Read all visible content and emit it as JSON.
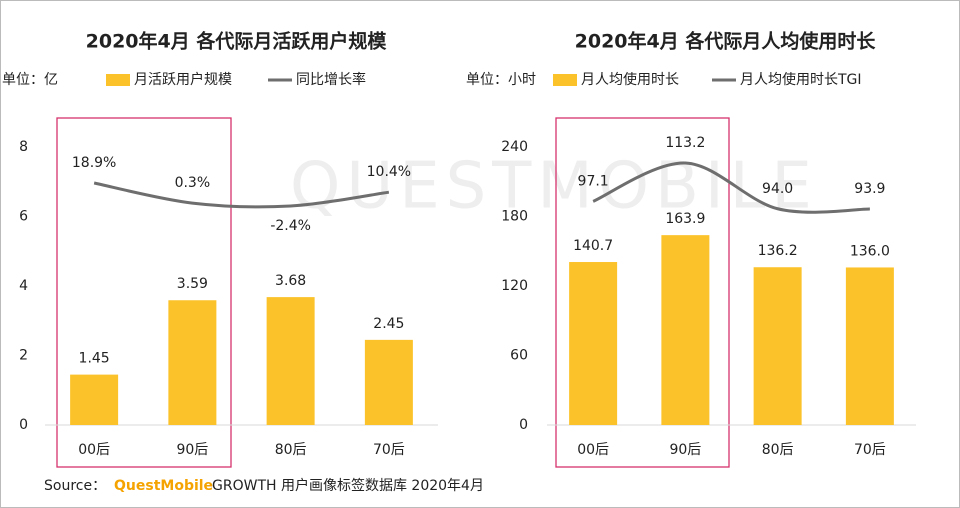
{
  "chart_data": [
    {
      "type": "bar",
      "title": "2020年4月 各代际月活跃用户规模",
      "unit": "单位：亿",
      "categories": [
        "00后",
        "90后",
        "80后",
        "70后"
      ],
      "ylim": [
        0,
        8
      ],
      "yticks": [
        0,
        2,
        4,
        6,
        8
      ],
      "series": [
        {
          "name": "月活跃用户规模",
          "color": "#fcc229",
          "values": [
            1.45,
            3.59,
            3.68,
            2.45
          ]
        },
        {
          "name": "同比增长率",
          "type": "line",
          "color": "#6e6e6e",
          "values": [
            18.9,
            0.3,
            -2.4,
            10.4
          ],
          "value_labels": [
            "18.9%",
            "0.3%",
            "-2.4%",
            "10.4%"
          ]
        }
      ]
    },
    {
      "type": "bar",
      "title": "2020年4月 各代际月人均使用时长",
      "unit": "单位：小时",
      "categories": [
        "00后",
        "90后",
        "80后",
        "70后"
      ],
      "ylim": [
        0,
        240
      ],
      "yticks": [
        0,
        60,
        120,
        180,
        240
      ],
      "series": [
        {
          "name": "月人均使用时长",
          "color": "#fcc229",
          "values": [
            140.7,
            163.9,
            136.2,
            136.0
          ],
          "value_labels": [
            "140.7",
            "163.9",
            "136.2",
            "136.0"
          ]
        },
        {
          "name": "月人均使用时长TGI",
          "type": "line",
          "color": "#6e6e6e",
          "values": [
            97.1,
            113.2,
            94.0,
            93.9
          ],
          "value_labels": [
            "97.1",
            "113.2",
            "94.0",
            "93.9"
          ]
        }
      ]
    }
  ],
  "source": {
    "prefix": "Source：",
    "brand": "QuestMobile",
    "text": "GROWTH 用户画像标签数据库 2020年4月"
  },
  "watermark": "QUESTMOBILE"
}
